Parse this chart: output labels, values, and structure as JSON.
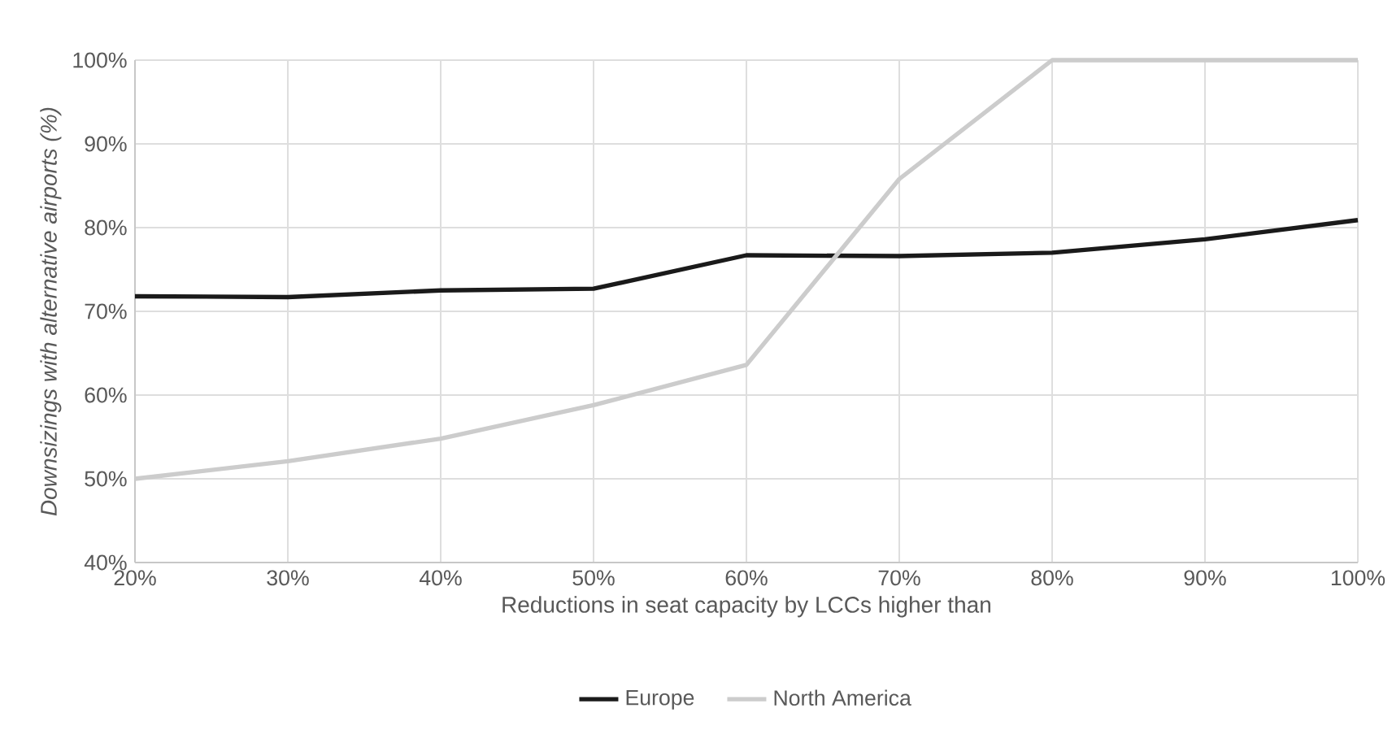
{
  "chart_data": {
    "type": "line",
    "xlabel": "Reductions in seat capacity by LCCs higher than",
    "ylabel": "Downsizings with alternative airports (%)",
    "categories": [
      "20%",
      "30%",
      "40%",
      "50%",
      "60%",
      "70%",
      "80%",
      "90%",
      "100%"
    ],
    "ylim": [
      40,
      100
    ],
    "yticks": [
      {
        "value": 40,
        "label": "40%"
      },
      {
        "value": 50,
        "label": "50%"
      },
      {
        "value": 60,
        "label": "60%"
      },
      {
        "value": 70,
        "label": "70%"
      },
      {
        "value": 80,
        "label": "80%"
      },
      {
        "value": 90,
        "label": "90%"
      },
      {
        "value": 100,
        "label": "100%"
      }
    ],
    "grid": true,
    "legend": "bottom",
    "marker": "none",
    "line_style": "solid",
    "series": [
      {
        "name": "Europe",
        "color": "#1a1a1a",
        "values": [
          71.8,
          71.7,
          72.5,
          72.7,
          76.7,
          76.6,
          77.0,
          78.6,
          80.9
        ]
      },
      {
        "name": "North America",
        "color": "#cccccc",
        "values": [
          50.0,
          52.1,
          54.8,
          58.8,
          63.6,
          85.8,
          100,
          100,
          100
        ]
      }
    ]
  }
}
